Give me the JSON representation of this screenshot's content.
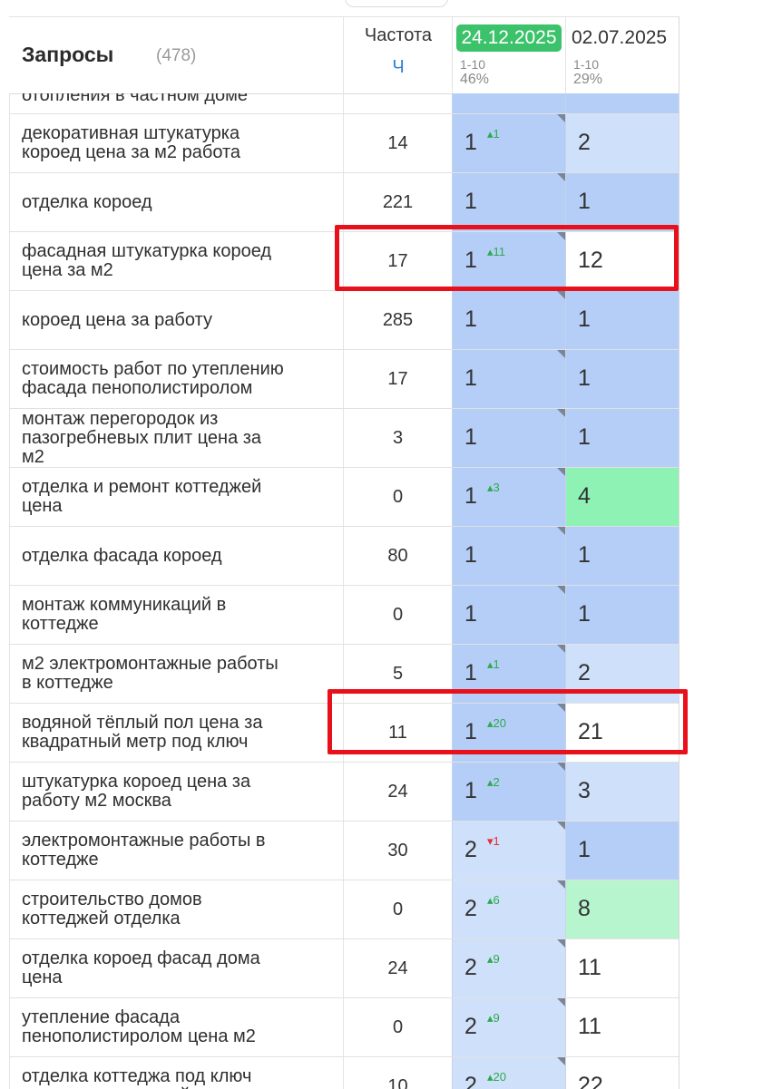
{
  "header": {
    "title": "Запросы",
    "count": "(478)",
    "freq_label": "Частота",
    "freq_sub": "Ч",
    "date1": "24.12.2025",
    "date1_range": "1-10",
    "date1_pct": "46%",
    "date2": "02.07.2025",
    "date2_range": "1-10",
    "date2_pct": "29%"
  },
  "partial_query": "отопления в частном доме",
  "rows": [
    {
      "q": "декоративная штукатурка короед цена за м2 работа",
      "f": "14",
      "p1": "1",
      "d": "1",
      "dir": "up",
      "p2": "2"
    },
    {
      "q": "отделка короед",
      "f": "221",
      "p1": "1",
      "d": "",
      "dir": "",
      "p2": "1"
    },
    {
      "q": "фасадная штукатурка короед цена за м2",
      "f": "17",
      "p1": "1",
      "d": "11",
      "dir": "up",
      "p2": "12"
    },
    {
      "q": "короед цена за работу",
      "f": "285",
      "p1": "1",
      "d": "",
      "dir": "",
      "p2": "1"
    },
    {
      "q": "стоимость работ по утеплению фасада пенополистиролом",
      "f": "17",
      "p1": "1",
      "d": "",
      "dir": "",
      "p2": "1"
    },
    {
      "q": "монтаж перегородок из пазогребневых плит цена за м2",
      "f": "3",
      "p1": "1",
      "d": "",
      "dir": "",
      "p2": "1"
    },
    {
      "q": "отделка и ремонт коттеджей цена",
      "f": "0",
      "p1": "1",
      "d": "3",
      "dir": "up",
      "p2": "4"
    },
    {
      "q": "отделка фасада короед",
      "f": "80",
      "p1": "1",
      "d": "",
      "dir": "",
      "p2": "1"
    },
    {
      "q": "монтаж коммуникаций в коттедже",
      "f": "0",
      "p1": "1",
      "d": "",
      "dir": "",
      "p2": "1"
    },
    {
      "q": "м2 электромонтажные работы в коттедже",
      "f": "5",
      "p1": "1",
      "d": "1",
      "dir": "up",
      "p2": "2"
    },
    {
      "q": "водяной тёплый пол цена за квадратный метр под ключ",
      "f": "11",
      "p1": "1",
      "d": "20",
      "dir": "up",
      "p2": "21"
    },
    {
      "q": "штукатурка короед цена за работу м2 москва",
      "f": "24",
      "p1": "1",
      "d": "2",
      "dir": "up",
      "p2": "3"
    },
    {
      "q": "электромонтажные работы в коттедже",
      "f": "30",
      "p1": "2",
      "d": "1",
      "dir": "down",
      "p2": "1"
    },
    {
      "q": "строительство домов коттеджей отделка",
      "f": "0",
      "p1": "2",
      "d": "6",
      "dir": "up",
      "p2": "8"
    },
    {
      "q": "отделка короед фасад дома цена",
      "f": "24",
      "p1": "2",
      "d": "9",
      "dir": "up",
      "p2": "11"
    },
    {
      "q": "утепление фасада пенополистиролом цена м2",
      "f": "0",
      "p1": "2",
      "d": "9",
      "dir": "up",
      "p2": "11"
    },
    {
      "q": "отделка коттеджа под ключ цена за квадратный",
      "f": "10",
      "p1": "2",
      "d": "20",
      "dir": "up",
      "p2": "22"
    }
  ],
  "colors": {
    "top1": "#b5cef7",
    "top3": "#cfe0fb",
    "green_top5": "#8ef2b4",
    "green_top10": "#b7f5cf",
    "highlight": "#e8101b",
    "date_badge": "#3cc26a"
  },
  "highlighted_rows": [
    2,
    10
  ]
}
